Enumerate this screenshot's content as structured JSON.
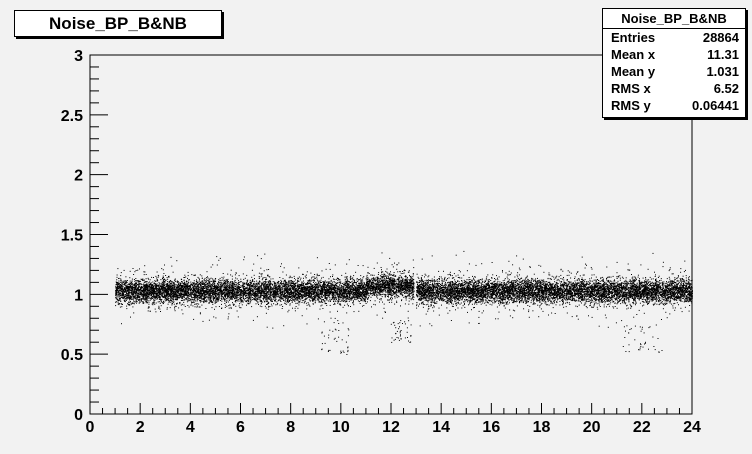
{
  "chart_data": {
    "type": "scatter",
    "title": "Noise_BP_B&NB",
    "xlim": [
      0,
      24
    ],
    "ylim": [
      0,
      3
    ],
    "xticks": [
      0,
      2,
      4,
      6,
      8,
      10,
      12,
      14,
      16,
      18,
      20,
      22,
      24
    ],
    "yticks": [
      0,
      0.5,
      1,
      1.5,
      2,
      2.5,
      3
    ],
    "xlabel": "",
    "ylabel": "",
    "grid": false,
    "point_color": "#000000",
    "band_segments": [
      {
        "x_start": 1.0,
        "x_end": 11.0,
        "y_center": 1.03
      },
      {
        "x_start": 11.0,
        "x_end": 12.9,
        "y_center": 1.07
      },
      {
        "x_start": 13.0,
        "x_end": 24.0,
        "y_center": 1.03
      }
    ],
    "band_rms_y": 0.064,
    "sparse_regions": [
      {
        "x_range": [
          9.2,
          10.3
        ],
        "y_range": [
          0.5,
          0.8
        ]
      },
      {
        "x_range": [
          12.0,
          12.8
        ],
        "y_range": [
          0.6,
          0.8
        ]
      },
      {
        "x_range": [
          21.2,
          22.8
        ],
        "y_range": [
          0.5,
          0.75
        ]
      }
    ],
    "stats": {
      "name": "Noise_BP_B&NB",
      "rows": [
        {
          "label": "Entries",
          "value": "28864"
        },
        {
          "label": "Mean x",
          "value": "11.31"
        },
        {
          "label": "Mean y",
          "value": "1.031"
        },
        {
          "label": "RMS x",
          "value": "6.52"
        },
        {
          "label": "RMS y",
          "value": "0.06441"
        }
      ]
    }
  },
  "colors": {
    "background": "#f2f2f2",
    "frame": "#000000",
    "box_fill": "#ffffff"
  }
}
